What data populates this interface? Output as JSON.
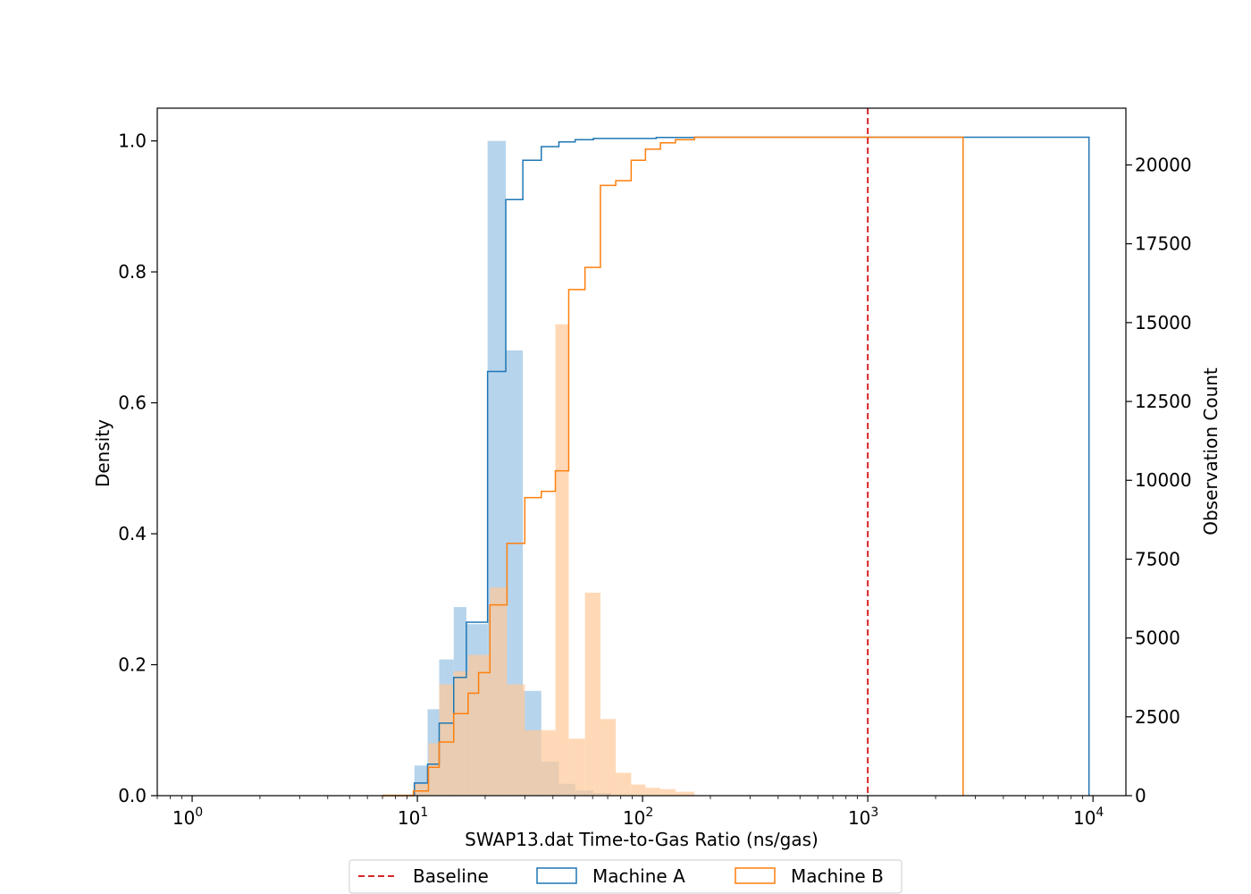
{
  "chart_data": {
    "type": "histogram",
    "xscale": "log",
    "x_range": [
      0.7,
      14000
    ],
    "y_left_range": [
      0,
      1.05
    ],
    "y_right_range": [
      0,
      21800
    ],
    "xlabel": "SWAP13.dat Time-to-Gas Ratio (ns/gas)",
    "ylabel_left": "Density",
    "ylabel_right": "Observation Count",
    "x_ticks": [
      {
        "value": 1,
        "base": "10",
        "exp": "0"
      },
      {
        "value": 10,
        "base": "10",
        "exp": "1"
      },
      {
        "value": 100,
        "base": "10",
        "exp": "2"
      },
      {
        "value": 1000,
        "base": "10",
        "exp": "3"
      },
      {
        "value": 10000,
        "base": "10",
        "exp": "4"
      }
    ],
    "y_left_ticks": [
      "0.0",
      "0.2",
      "0.4",
      "0.6",
      "0.8",
      "1.0"
    ],
    "y_right_ticks": [
      "0",
      "2500",
      "5000",
      "7500",
      "10000",
      "12500",
      "15000",
      "17500",
      "20000"
    ],
    "baseline": {
      "name": "Baseline",
      "x": 1000,
      "color": "#d62728"
    },
    "legend": [
      {
        "name": "Baseline",
        "style": "dashed-line",
        "color": "#d62728"
      },
      {
        "name": "Machine A",
        "style": "step-box",
        "color": "#1f77b4"
      },
      {
        "name": "Machine B",
        "style": "step-box",
        "color": "#ff7f0e"
      }
    ],
    "legend_position": "bottom-center",
    "series": [
      {
        "name": "Machine A",
        "color": "#1f77b4",
        "hist_fill": "#9ec5e5",
        "density_bins": [
          {
            "x0": 9.7,
            "x1": 11.1,
            "density": 0.046
          },
          {
            "x0": 11.1,
            "x1": 12.5,
            "density": 0.132
          },
          {
            "x0": 12.5,
            "x1": 14.5,
            "density": 0.208
          },
          {
            "x0": 14.5,
            "x1": 16.5,
            "density": 0.288
          },
          {
            "x0": 16.5,
            "x1": 20.5,
            "density": 0.262
          },
          {
            "x0": 20.5,
            "x1": 24.7,
            "density": 1.0
          },
          {
            "x0": 24.7,
            "x1": 29.4,
            "density": 0.68
          },
          {
            "x0": 29.4,
            "x1": 35.5,
            "density": 0.16
          },
          {
            "x0": 35.5,
            "x1": 42.5,
            "density": 0.052
          },
          {
            "x0": 42.5,
            "x1": 50.2,
            "density": 0.018
          },
          {
            "x0": 50.2,
            "x1": 60.5,
            "density": 0.008
          },
          {
            "x0": 60.5,
            "x1": 72.5,
            "density": 0.004
          }
        ],
        "cumulative_steps": [
          {
            "x": 9.7,
            "count": 0
          },
          {
            "x": 9.7,
            "count": 400
          },
          {
            "x": 11.1,
            "count": 1000
          },
          {
            "x": 12.5,
            "count": 2300
          },
          {
            "x": 14.5,
            "count": 3750
          },
          {
            "x": 16.5,
            "count": 5500
          },
          {
            "x": 20.5,
            "count": 13450
          },
          {
            "x": 24.7,
            "count": 18900
          },
          {
            "x": 29.4,
            "count": 20150
          },
          {
            "x": 35.5,
            "count": 20580
          },
          {
            "x": 42.5,
            "count": 20730
          },
          {
            "x": 50.2,
            "count": 20800
          },
          {
            "x": 60.5,
            "count": 20840
          },
          {
            "x": 115,
            "count": 20870
          },
          {
            "x": 170,
            "count": 20880
          },
          {
            "x": 9600,
            "count": 20880
          },
          {
            "x": 9600,
            "count": 0
          }
        ]
      },
      {
        "name": "Machine B",
        "color": "#ff7f0e",
        "hist_fill": "#ffc999",
        "density_bins": [
          {
            "x0": 7.0,
            "x1": 9.6,
            "density": 0.002
          },
          {
            "x0": 9.6,
            "x1": 11.2,
            "density": 0.018
          },
          {
            "x0": 11.2,
            "x1": 12.5,
            "density": 0.08
          },
          {
            "x0": 12.5,
            "x1": 14.5,
            "density": 0.17
          },
          {
            "x0": 14.5,
            "x1": 16.8,
            "density": 0.19
          },
          {
            "x0": 16.8,
            "x1": 18.7,
            "density": 0.215
          },
          {
            "x0": 18.7,
            "x1": 21.0,
            "density": 0.215
          },
          {
            "x0": 21.0,
            "x1": 25.0,
            "density": 0.318
          },
          {
            "x0": 25.0,
            "x1": 30.0,
            "density": 0.17
          },
          {
            "x0": 30.0,
            "x1": 35.5,
            "density": 0.1
          },
          {
            "x0": 35.5,
            "x1": 41.0,
            "density": 0.1
          },
          {
            "x0": 41.0,
            "x1": 47.0,
            "density": 0.72
          },
          {
            "x0": 47.0,
            "x1": 55.5,
            "density": 0.087
          },
          {
            "x0": 55.5,
            "x1": 65.0,
            "density": 0.31
          },
          {
            "x0": 65.0,
            "x1": 76.0,
            "density": 0.117
          },
          {
            "x0": 76.0,
            "x1": 89.0,
            "density": 0.035
          },
          {
            "x0": 89.0,
            "x1": 103.0,
            "density": 0.017
          },
          {
            "x0": 103.0,
            "x1": 120.0,
            "density": 0.012
          },
          {
            "x0": 120.0,
            "x1": 140.0,
            "density": 0.01
          },
          {
            "x0": 140.0,
            "x1": 170.0,
            "density": 0.006
          }
        ],
        "cumulative_steps": [
          {
            "x": 7.0,
            "count": 0
          },
          {
            "x": 9.6,
            "count": 150
          },
          {
            "x": 11.2,
            "count": 900
          },
          {
            "x": 12.5,
            "count": 1700
          },
          {
            "x": 14.5,
            "count": 2600
          },
          {
            "x": 16.8,
            "count": 3250
          },
          {
            "x": 18.7,
            "count": 3900
          },
          {
            "x": 21.0,
            "count": 6050
          },
          {
            "x": 25.0,
            "count": 8000
          },
          {
            "x": 30.0,
            "count": 9450
          },
          {
            "x": 35.5,
            "count": 9650
          },
          {
            "x": 41.0,
            "count": 10300
          },
          {
            "x": 47.0,
            "count": 16050
          },
          {
            "x": 55.5,
            "count": 16750
          },
          {
            "x": 65.0,
            "count": 19350
          },
          {
            "x": 76.0,
            "count": 19500
          },
          {
            "x": 89.0,
            "count": 20150
          },
          {
            "x": 103.0,
            "count": 20500
          },
          {
            "x": 120.0,
            "count": 20700
          },
          {
            "x": 140.0,
            "count": 20800
          },
          {
            "x": 170.0,
            "count": 20880
          },
          {
            "x": 2650,
            "count": 20880
          },
          {
            "x": 2650,
            "count": 0
          }
        ]
      }
    ]
  }
}
